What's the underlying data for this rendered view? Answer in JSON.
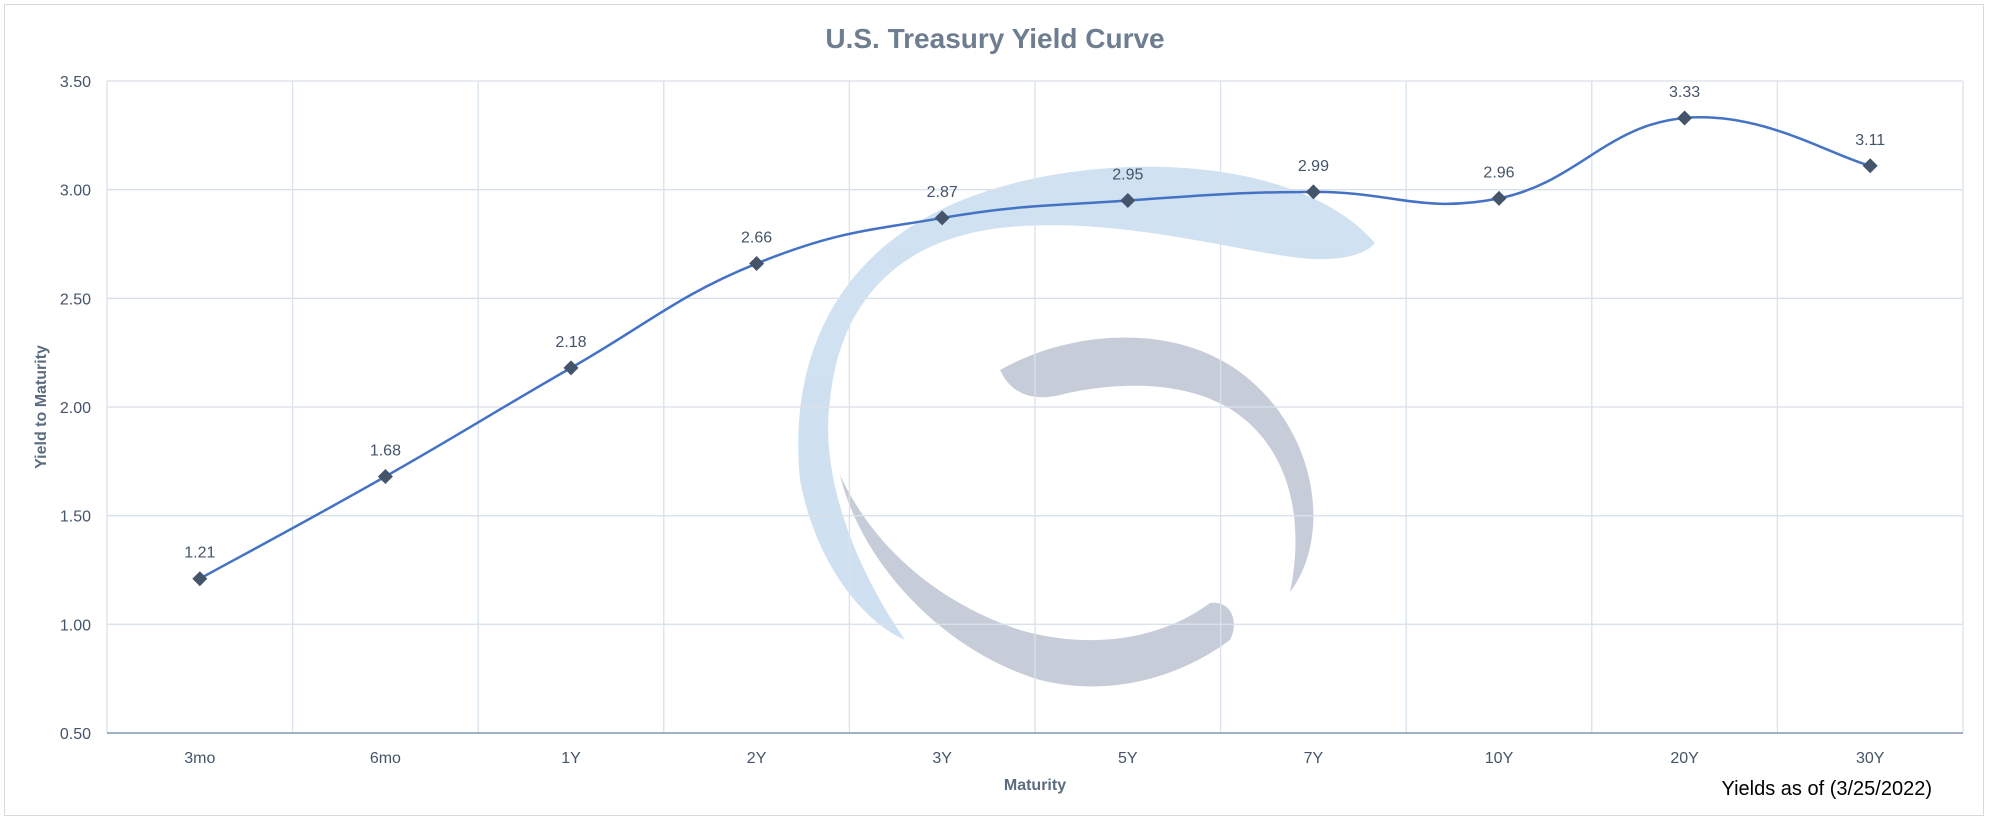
{
  "chart_data": {
    "type": "line",
    "title": "U.S. Treasury Yield Curve",
    "xlabel": "Maturity",
    "ylabel": "Yield to Maturity",
    "categories": [
      "3mo",
      "6mo",
      "1Y",
      "2Y",
      "3Y",
      "5Y",
      "7Y",
      "10Y",
      "20Y",
      "30Y"
    ],
    "series": [
      {
        "values": [
          1.21,
          1.68,
          2.18,
          2.66,
          2.87,
          2.95,
          2.99,
          2.96,
          3.33,
          3.11
        ]
      }
    ],
    "data_labels": [
      "1.21",
      "1.68",
      "2.18",
      "2.66",
      "2.87",
      "2.95",
      "2.99",
      "2.96",
      "3.33",
      "3.11"
    ],
    "yticks": [
      "0.50",
      "1.00",
      "1.50",
      "2.00",
      "2.50",
      "3.00",
      "3.50"
    ],
    "ylim": [
      0.5,
      3.5
    ],
    "grid": true,
    "legend": "none",
    "line_color": "#4472c4",
    "marker_color": "#44546a"
  },
  "note": "Yields as of (3/25/2022)"
}
